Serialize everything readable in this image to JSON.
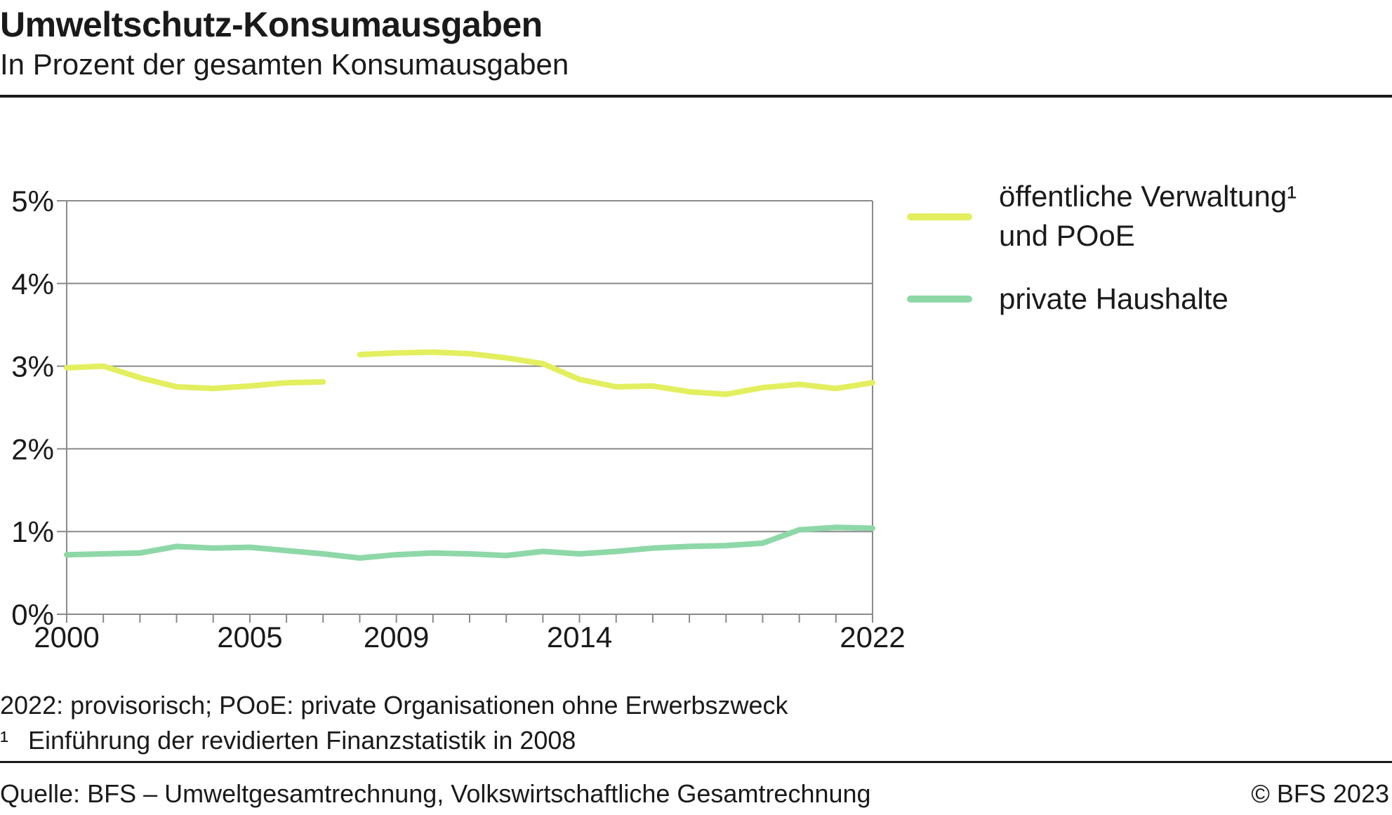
{
  "header": {
    "title": "Umweltschutz-Konsumausgaben",
    "subtitle": "In Prozent der gesamten Konsumausgaben"
  },
  "notes": {
    "line1": "2022: provisorisch; POoE: private Organisationen ohne Erwerbszweck",
    "footnote_marker": "¹",
    "footnote_text": "Einführung der revidierten Finanzstatistik in 2008"
  },
  "footer": {
    "source": "Quelle: BFS – Umweltgesamtrechnung, Volkswirtschaftliche Gesamtrechnung",
    "copyright": "© BFS 2023"
  },
  "legend": {
    "items": [
      {
        "line1": "öffentliche Verwaltung¹",
        "line2": "und POoE",
        "color": "#e3ef5f"
      },
      {
        "line1": "private Haushalte",
        "color": "#8ed8a8"
      }
    ]
  },
  "chart_data": {
    "type": "line",
    "x": [
      2000,
      2001,
      2002,
      2003,
      2004,
      2005,
      2006,
      2007,
      2008,
      2009,
      2010,
      2011,
      2012,
      2013,
      2014,
      2015,
      2016,
      2017,
      2018,
      2019,
      2020,
      2021,
      2022
    ],
    "x_tick_labels": [
      "2000",
      "2005",
      "2009",
      "2014",
      "2022"
    ],
    "y_tick_labels": [
      "0%",
      "1%",
      "2%",
      "3%",
      "4%",
      "5%"
    ],
    "ylim": [
      0,
      5
    ],
    "grid": true,
    "legend_position": "right",
    "series": [
      {
        "name": "öffentliche Verwaltung¹ und POoE",
        "color": "#e3ef5f",
        "values": [
          2.98,
          3.0,
          2.86,
          2.75,
          2.73,
          2.76,
          2.8,
          2.81,
          3.14,
          3.16,
          3.17,
          3.15,
          3.1,
          3.03,
          2.84,
          2.75,
          2.76,
          2.69,
          2.66,
          2.74,
          2.78,
          2.73,
          2.8
        ]
      },
      {
        "name": "private Haushalte",
        "color": "#8ed8a8",
        "values": [
          0.72,
          0.73,
          0.74,
          0.82,
          0.8,
          0.81,
          0.77,
          0.73,
          0.68,
          0.72,
          0.74,
          0.73,
          0.71,
          0.76,
          0.73,
          0.76,
          0.8,
          0.82,
          0.83,
          0.86,
          1.02,
          1.05,
          1.04
        ]
      }
    ]
  }
}
